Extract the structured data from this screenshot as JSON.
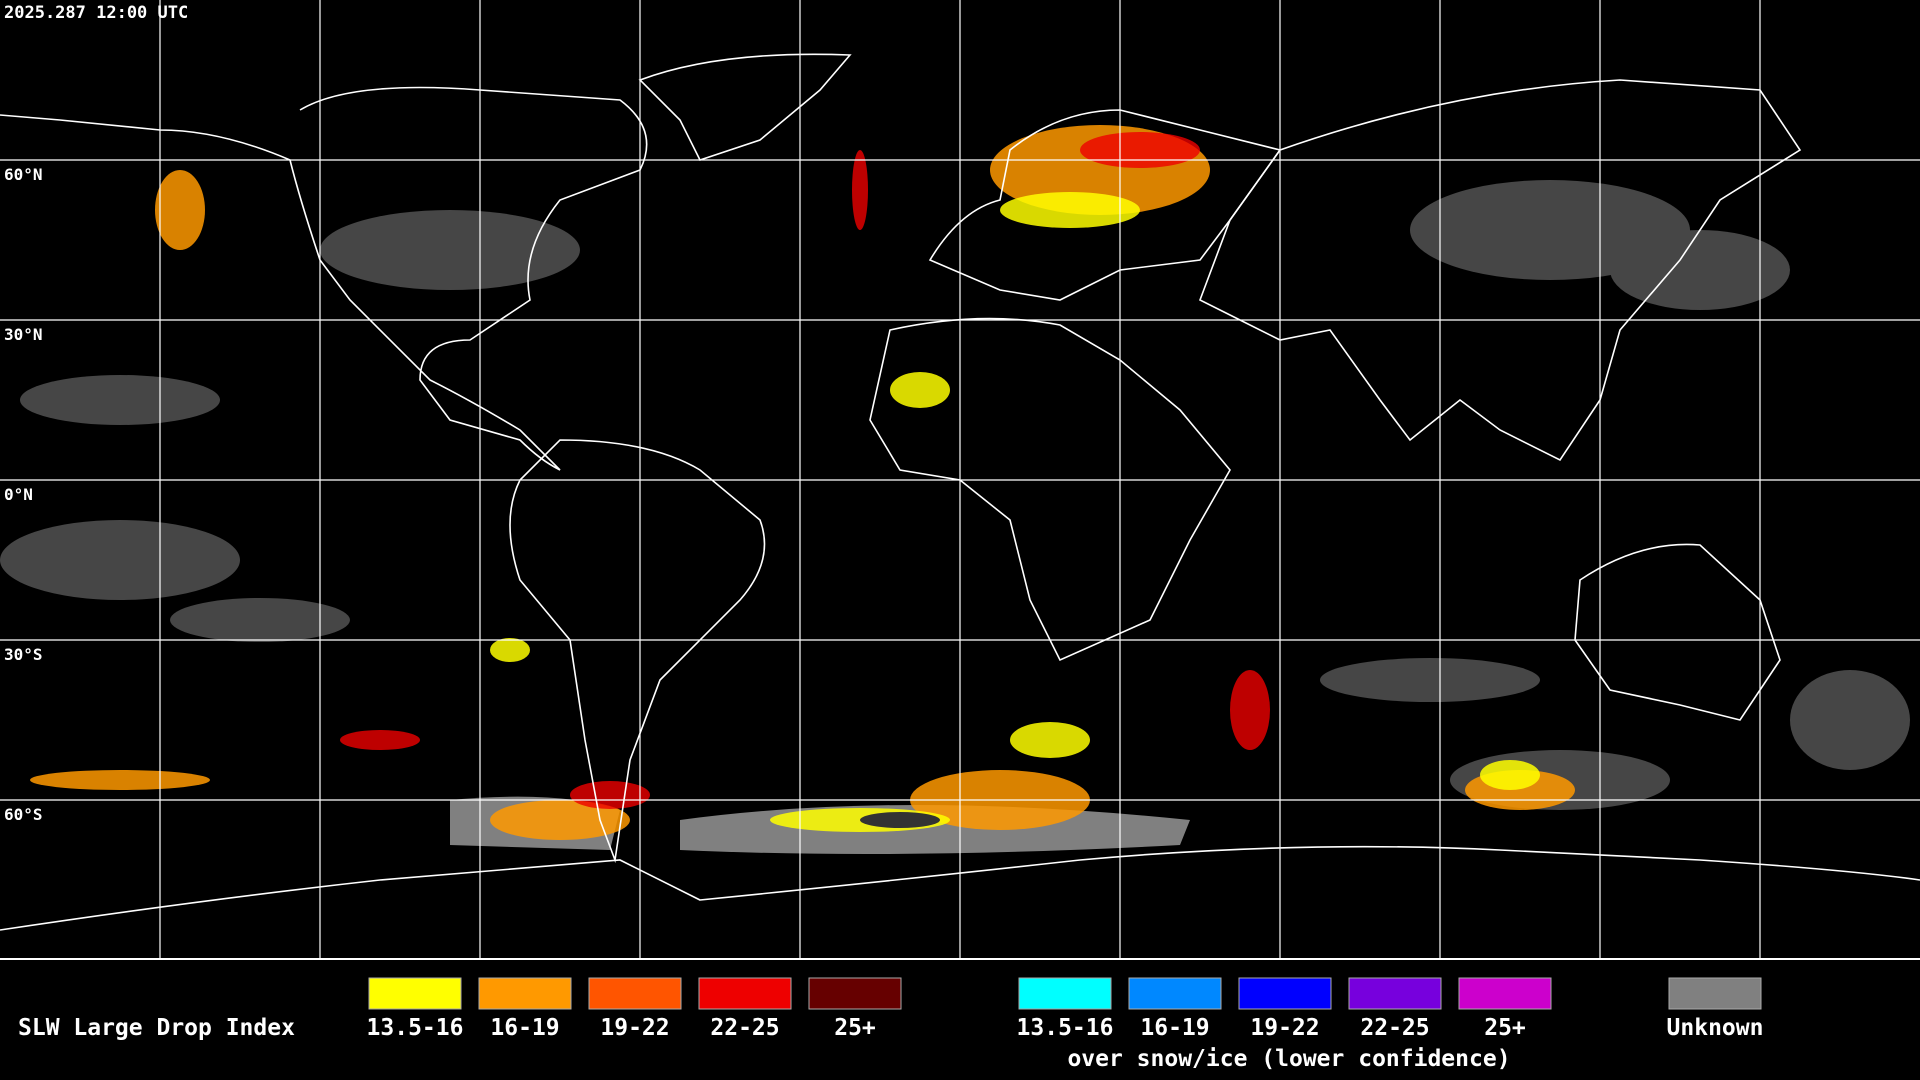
{
  "header": {
    "timestamp": "2025.287 12:00 UTC"
  },
  "map": {
    "lat_labels": [
      "60°N",
      "30°N",
      "0°N",
      "30°S",
      "60°S"
    ]
  },
  "legend": {
    "title": "SLW Large Drop Index",
    "normal": [
      {
        "label": "13.5-16",
        "color": "#ffff00"
      },
      {
        "label": "16-19",
        "color": "#ff9900"
      },
      {
        "label": "19-22",
        "color": "#ff5500"
      },
      {
        "label": "22-25",
        "color": "#ee0000"
      },
      {
        "label": "25+",
        "color": "#660000"
      }
    ],
    "snow_ice": [
      {
        "label": "13.5-16",
        "color": "#00ffff"
      },
      {
        "label": "16-19",
        "color": "#0088ff"
      },
      {
        "label": "19-22",
        "color": "#0000ff"
      },
      {
        "label": "22-25",
        "color": "#7700dd"
      },
      {
        "label": "25+",
        "color": "#cc00cc"
      }
    ],
    "snow_ice_note": "over snow/ice (lower confidence)",
    "unknown": {
      "label": "Unknown",
      "color": "#808080"
    }
  }
}
